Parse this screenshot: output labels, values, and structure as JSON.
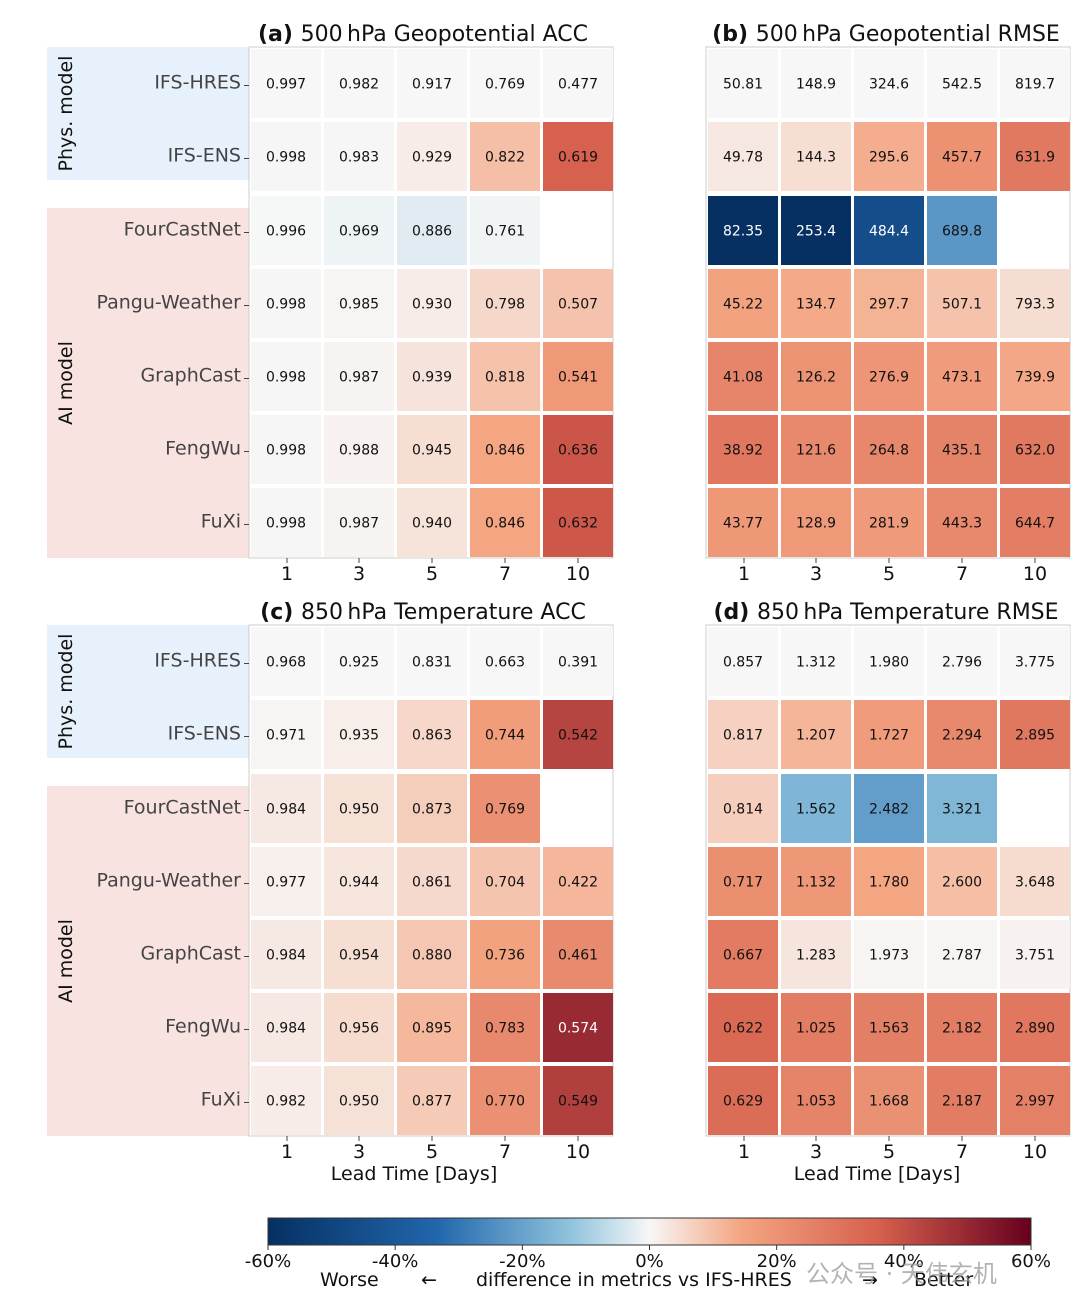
{
  "chart_data": [
    {
      "type": "heatmap",
      "panel": "(a)",
      "title": "500 hPa Geopotential ACC",
      "xlabel": "",
      "x": [
        "1",
        "3",
        "5",
        "7",
        "10"
      ],
      "rows": [
        "IFS-HRES",
        "IFS-ENS",
        "FourCastNet",
        "Pangu-Weather",
        "GraphCast",
        "FengWu",
        "FuXi"
      ],
      "values": [
        [
          "0.997",
          "0.982",
          "0.917",
          "0.769",
          "0.477"
        ],
        [
          "0.998",
          "0.983",
          "0.929",
          "0.822",
          "0.619"
        ],
        [
          "0.996",
          "0.969",
          "0.886",
          "0.761",
          null
        ],
        [
          "0.998",
          "0.985",
          "0.930",
          "0.798",
          "0.507"
        ],
        [
          "0.998",
          "0.987",
          "0.939",
          "0.818",
          "0.541"
        ],
        [
          "0.998",
          "0.988",
          "0.945",
          "0.846",
          "0.636"
        ],
        [
          "0.998",
          "0.987",
          "0.940",
          "0.846",
          "0.632"
        ]
      ],
      "diff_pct": [
        [
          0,
          0,
          0,
          0,
          0
        ],
        [
          0.1,
          0.1,
          1.3,
          6.9,
          29.8
        ],
        [
          -0.1,
          -1.3,
          -3.4,
          -1.0,
          null
        ],
        [
          0.1,
          0.3,
          1.4,
          3.8,
          6.3
        ],
        [
          0.1,
          0.5,
          2.4,
          6.4,
          13.4
        ],
        [
          0.1,
          0.6,
          3.1,
          10.0,
          33.3
        ],
        [
          0.1,
          0.5,
          2.5,
          10.0,
          32.5
        ]
      ]
    },
    {
      "type": "heatmap",
      "panel": "(b)",
      "title": "500 hPa Geopotential RMSE",
      "xlabel": "",
      "x": [
        "1",
        "3",
        "5",
        "7",
        "10"
      ],
      "rows": [
        "IFS-HRES",
        "IFS-ENS",
        "FourCastNet",
        "Pangu-Weather",
        "GraphCast",
        "FengWu",
        "FuXi"
      ],
      "values": [
        [
          "50.81",
          "148.9",
          "324.6",
          "542.5",
          "819.7"
        ],
        [
          "49.78",
          "144.3",
          "295.6",
          "457.7",
          "631.9"
        ],
        [
          "82.35",
          "253.4",
          "484.4",
          "689.8",
          null
        ],
        [
          "45.22",
          "134.7",
          "297.7",
          "507.1",
          "793.3"
        ],
        [
          "41.08",
          "126.2",
          "276.9",
          "473.1",
          "739.9"
        ],
        [
          "38.92",
          "121.6",
          "264.8",
          "435.1",
          "632.0"
        ],
        [
          "43.77",
          "128.9",
          "281.9",
          "443.3",
          "644.7"
        ]
      ],
      "diff_pct": [
        [
          0,
          0,
          0,
          0,
          0
        ],
        [
          2.0,
          3.1,
          8.9,
          15.6,
          22.9
        ],
        [
          -62.1,
          -70.2,
          -49.2,
          -27.2,
          null
        ],
        [
          11.0,
          9.5,
          8.3,
          6.5,
          3.2
        ],
        [
          19.2,
          15.2,
          14.7,
          12.8,
          9.7
        ],
        [
          23.4,
          18.3,
          18.4,
          19.8,
          22.9
        ],
        [
          13.9,
          13.4,
          13.2,
          18.3,
          21.3
        ]
      ]
    },
    {
      "type": "heatmap",
      "panel": "(c)",
      "title": "850 hPa Temperature ACC",
      "xlabel": "Lead Time [Days]",
      "x": [
        "1",
        "3",
        "5",
        "7",
        "10"
      ],
      "rows": [
        "IFS-HRES",
        "IFS-ENS",
        "FourCastNet",
        "Pangu-Weather",
        "GraphCast",
        "FengWu",
        "FuXi"
      ],
      "values": [
        [
          "0.968",
          "0.925",
          "0.831",
          "0.663",
          "0.391"
        ],
        [
          "0.971",
          "0.935",
          "0.863",
          "0.744",
          "0.542"
        ],
        [
          "0.984",
          "0.950",
          "0.873",
          "0.769",
          null
        ],
        [
          "0.977",
          "0.944",
          "0.861",
          "0.704",
          "0.422"
        ],
        [
          "0.984",
          "0.954",
          "0.880",
          "0.736",
          "0.461"
        ],
        [
          "0.984",
          "0.956",
          "0.895",
          "0.783",
          "0.574"
        ],
        [
          "0.982",
          "0.950",
          "0.877",
          "0.770",
          "0.549"
        ]
      ],
      "diff_pct": [
        [
          0,
          0,
          0,
          0,
          0
        ],
        [
          0.3,
          1.1,
          3.9,
          12.2,
          38.6
        ],
        [
          1.7,
          2.7,
          5.1,
          16.0,
          null
        ],
        [
          0.9,
          2.1,
          3.6,
          6.2,
          7.9
        ],
        [
          1.7,
          3.1,
          5.9,
          11.0,
          17.9
        ],
        [
          1.7,
          3.4,
          7.7,
          18.1,
          46.8
        ],
        [
          1.4,
          2.7,
          5.5,
          16.1,
          40.4
        ]
      ]
    },
    {
      "type": "heatmap",
      "panel": "(d)",
      "title": "850 hPa Temperature RMSE",
      "xlabel": "Lead Time [Days]",
      "x": [
        "1",
        "3",
        "5",
        "7",
        "10"
      ],
      "rows": [
        "IFS-HRES",
        "IFS-ENS",
        "FourCastNet",
        "Pangu-Weather",
        "GraphCast",
        "FengWu",
        "FuXi"
      ],
      "values": [
        [
          "0.857",
          "1.312",
          "1.980",
          "2.796",
          "3.775"
        ],
        [
          "0.817",
          "1.207",
          "1.727",
          "2.294",
          "2.895"
        ],
        [
          "0.814",
          "1.562",
          "2.482",
          "3.321",
          null
        ],
        [
          "0.717",
          "1.132",
          "1.780",
          "2.600",
          "3.648"
        ],
        [
          "0.667",
          "1.283",
          "1.973",
          "2.787",
          "3.751"
        ],
        [
          "0.622",
          "1.025",
          "1.563",
          "2.182",
          "2.890"
        ],
        [
          "0.629",
          "1.053",
          "1.668",
          "2.187",
          "2.997"
        ]
      ],
      "diff_pct": [
        [
          0,
          0,
          0,
          0,
          0
        ],
        [
          4.7,
          8.0,
          12.8,
          18.0,
          23.3
        ],
        [
          5.0,
          -19.1,
          -25.4,
          -18.8,
          null
        ],
        [
          16.3,
          13.7,
          10.1,
          7.0,
          3.4
        ],
        [
          22.2,
          2.2,
          0.4,
          0.3,
          0.6
        ],
        [
          27.4,
          21.9,
          21.1,
          22.0,
          23.4
        ],
        [
          26.6,
          19.7,
          15.8,
          21.8,
          20.6
        ]
      ]
    }
  ],
  "groups": [
    {
      "label": "Phys. model",
      "color": "#e7f1fb"
    },
    {
      "label": "AI model",
      "color": "#f9e3e1"
    }
  ],
  "colorbar": {
    "range": [
      -60,
      60
    ],
    "ticks": [
      "-60%",
      "-40%",
      "-20%",
      "0%",
      "20%",
      "40%",
      "60%"
    ],
    "left_label": "Worse",
    "left_arrow": "←",
    "center_label": "difference in metrics vs IFS-HRES",
    "right_arrow": "→",
    "right_label": "Better",
    "colors": {
      "neg_end": "#053061",
      "neg_mid": "#2166ac",
      "neg_light": "#92c5de",
      "neutral": "#f7f7f7",
      "pos_light": "#f4a582",
      "pos_mid": "#d6604d",
      "pos_end": "#67001f"
    }
  },
  "watermark": "公众号 · 天伟玄机"
}
